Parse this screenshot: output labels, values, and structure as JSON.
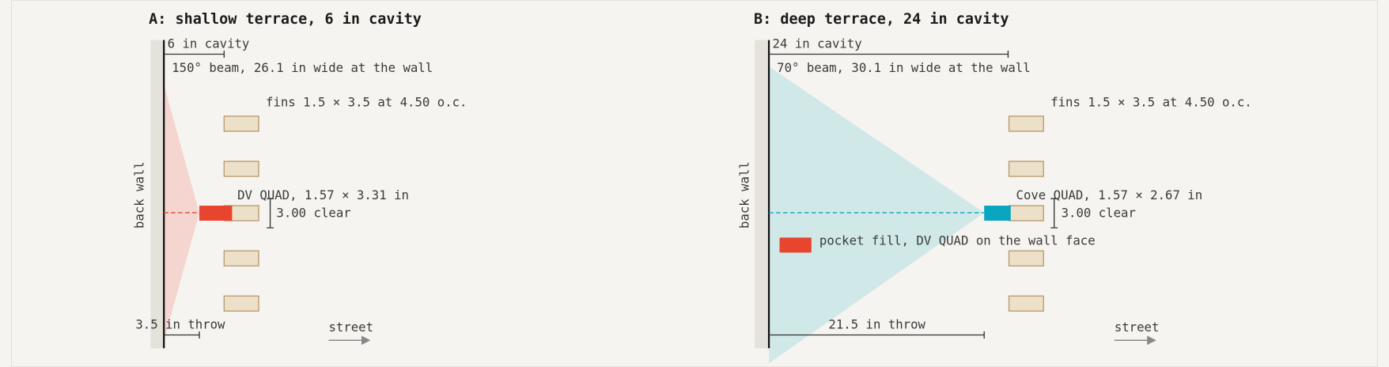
{
  "panels": [
    {
      "title": "A: shallow terrace, 6 in cavity",
      "cavity_label": "6 in cavity",
      "beam_label": "150° beam, 26.1 in wide at the wall",
      "fins_label": "fins 1.5 × 3.5 at 4.50 o.c.",
      "fixture_label": "DV QUAD, 1.57 × 3.31 in",
      "clear_label": "3.00 clear",
      "wall_label": "back wall",
      "throw_label": "3.5 in throw",
      "street_label": "street"
    },
    {
      "title": "B: deep terrace, 24 in cavity",
      "cavity_label": "24 in cavity",
      "beam_label": "70° beam, 30.1 in wide at the wall",
      "fins_label": "fins 1.5 × 3.5 at 4.50 o.c.",
      "fixture_label": "Cove QUAD, 1.57 × 2.67 in",
      "clear_label": "3.00 clear",
      "wall_label": "back wall",
      "throw_label": "21.5 in throw",
      "street_label": "street",
      "legend_label": "pocket fill, DV QUAD on the wall face"
    }
  ]
}
